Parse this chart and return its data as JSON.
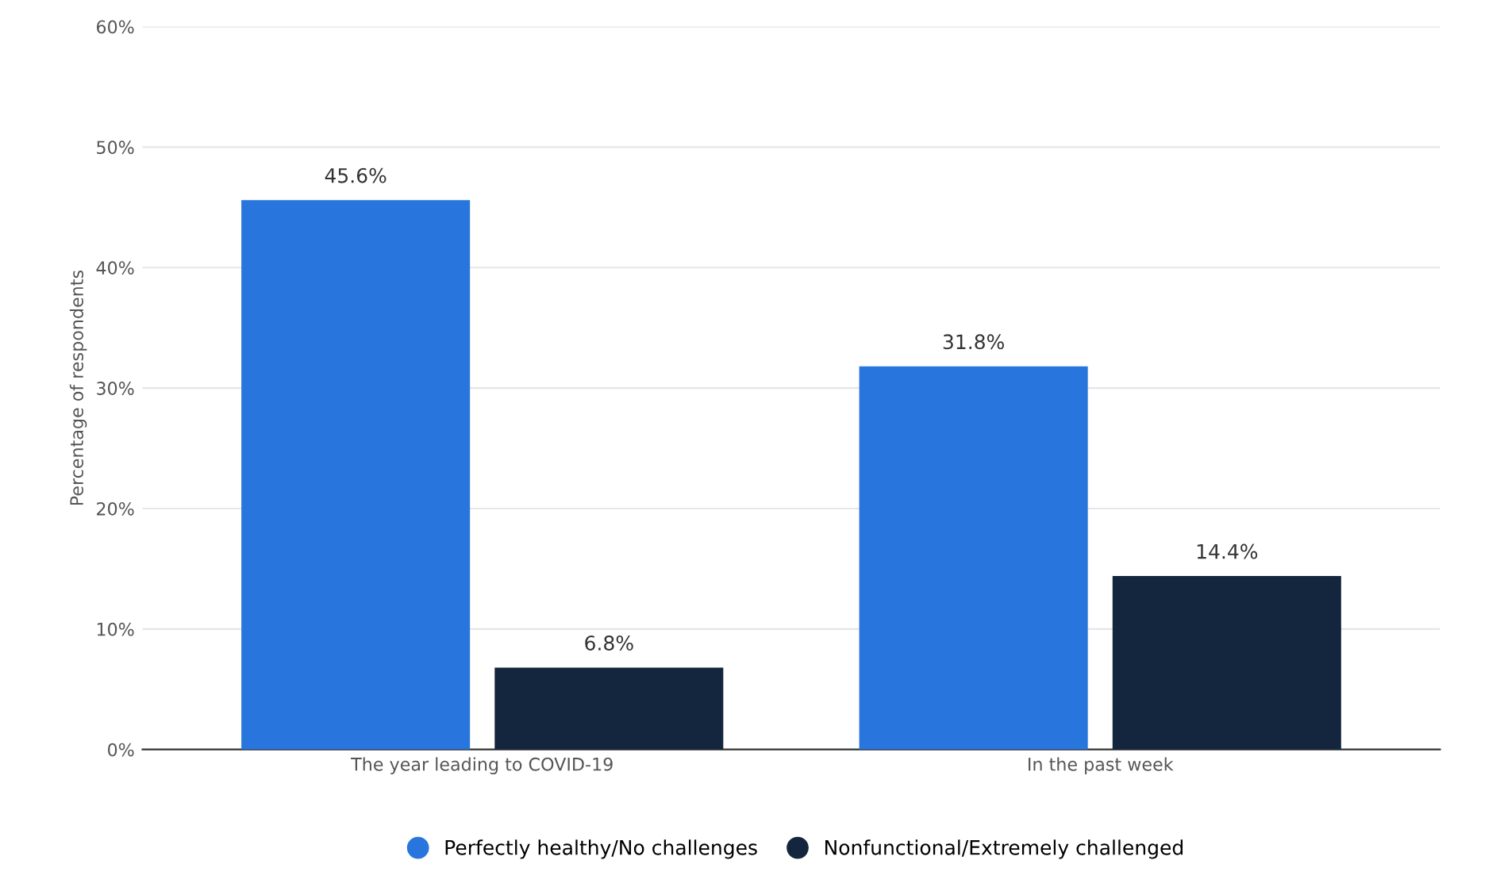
{
  "chart_data": {
    "type": "bar",
    "ylabel": "Percentage of respondents",
    "categories": [
      "The year leading to COVID-19",
      "In the past week"
    ],
    "series": [
      {
        "name": "Perfectly healthy/No challenges",
        "color": "#2876dd",
        "values": [
          45.6,
          31.8
        ],
        "value_labels": [
          "45.6%",
          "31.8%"
        ]
      },
      {
        "name": "Nonfunctional/Extremely challenged",
        "color": "#14263e",
        "values": [
          6.8,
          14.4
        ],
        "value_labels": [
          "6.8%",
          "14.4%"
        ]
      }
    ],
    "ylim": [
      0,
      60
    ],
    "yticks": [
      {
        "value": 0,
        "label": "0%"
      },
      {
        "value": 10,
        "label": "10%"
      },
      {
        "value": 20,
        "label": "20%"
      },
      {
        "value": 30,
        "label": "30%"
      },
      {
        "value": 40,
        "label": "40%"
      },
      {
        "value": 50,
        "label": "50%"
      },
      {
        "value": 60,
        "label": "60%"
      }
    ],
    "grid": "y",
    "legend": "bottom"
  }
}
